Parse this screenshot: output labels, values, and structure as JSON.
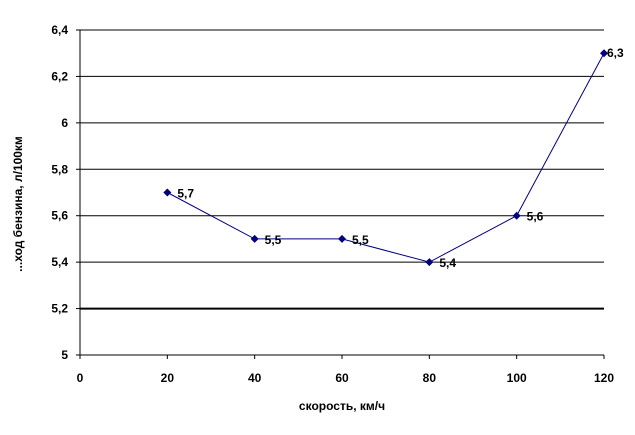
{
  "chart_data": {
    "type": "line",
    "xlabel": "скорость, км/ч",
    "ylabel": "...ход бензина, л/100км",
    "xlim": [
      0,
      120
    ],
    "ylim": [
      5,
      6.4
    ],
    "x_ticks": [
      0,
      20,
      40,
      60,
      80,
      100,
      120
    ],
    "y_ticks": [
      5,
      5.2,
      5.4,
      5.6,
      5.8,
      6,
      6.2,
      6.4
    ],
    "x_tick_labels": [
      "0",
      "20",
      "40",
      "60",
      "80",
      "100",
      "120"
    ],
    "y_tick_labels": [
      "5",
      "5,2",
      "5,4",
      "5,6",
      "5,8",
      "6",
      "6,2",
      "6,4"
    ],
    "grid": "horizontal",
    "legend": "none",
    "series": [
      {
        "x": [
          20,
          40,
          60,
          80,
          100,
          120
        ],
        "y": [
          5.7,
          5.5,
          5.5,
          5.4,
          5.6,
          6.3
        ],
        "labels": [
          "5,7",
          "5,5",
          "5,5",
          "5,4",
          "5,6",
          "6,3"
        ],
        "color": "#000080"
      }
    ]
  }
}
